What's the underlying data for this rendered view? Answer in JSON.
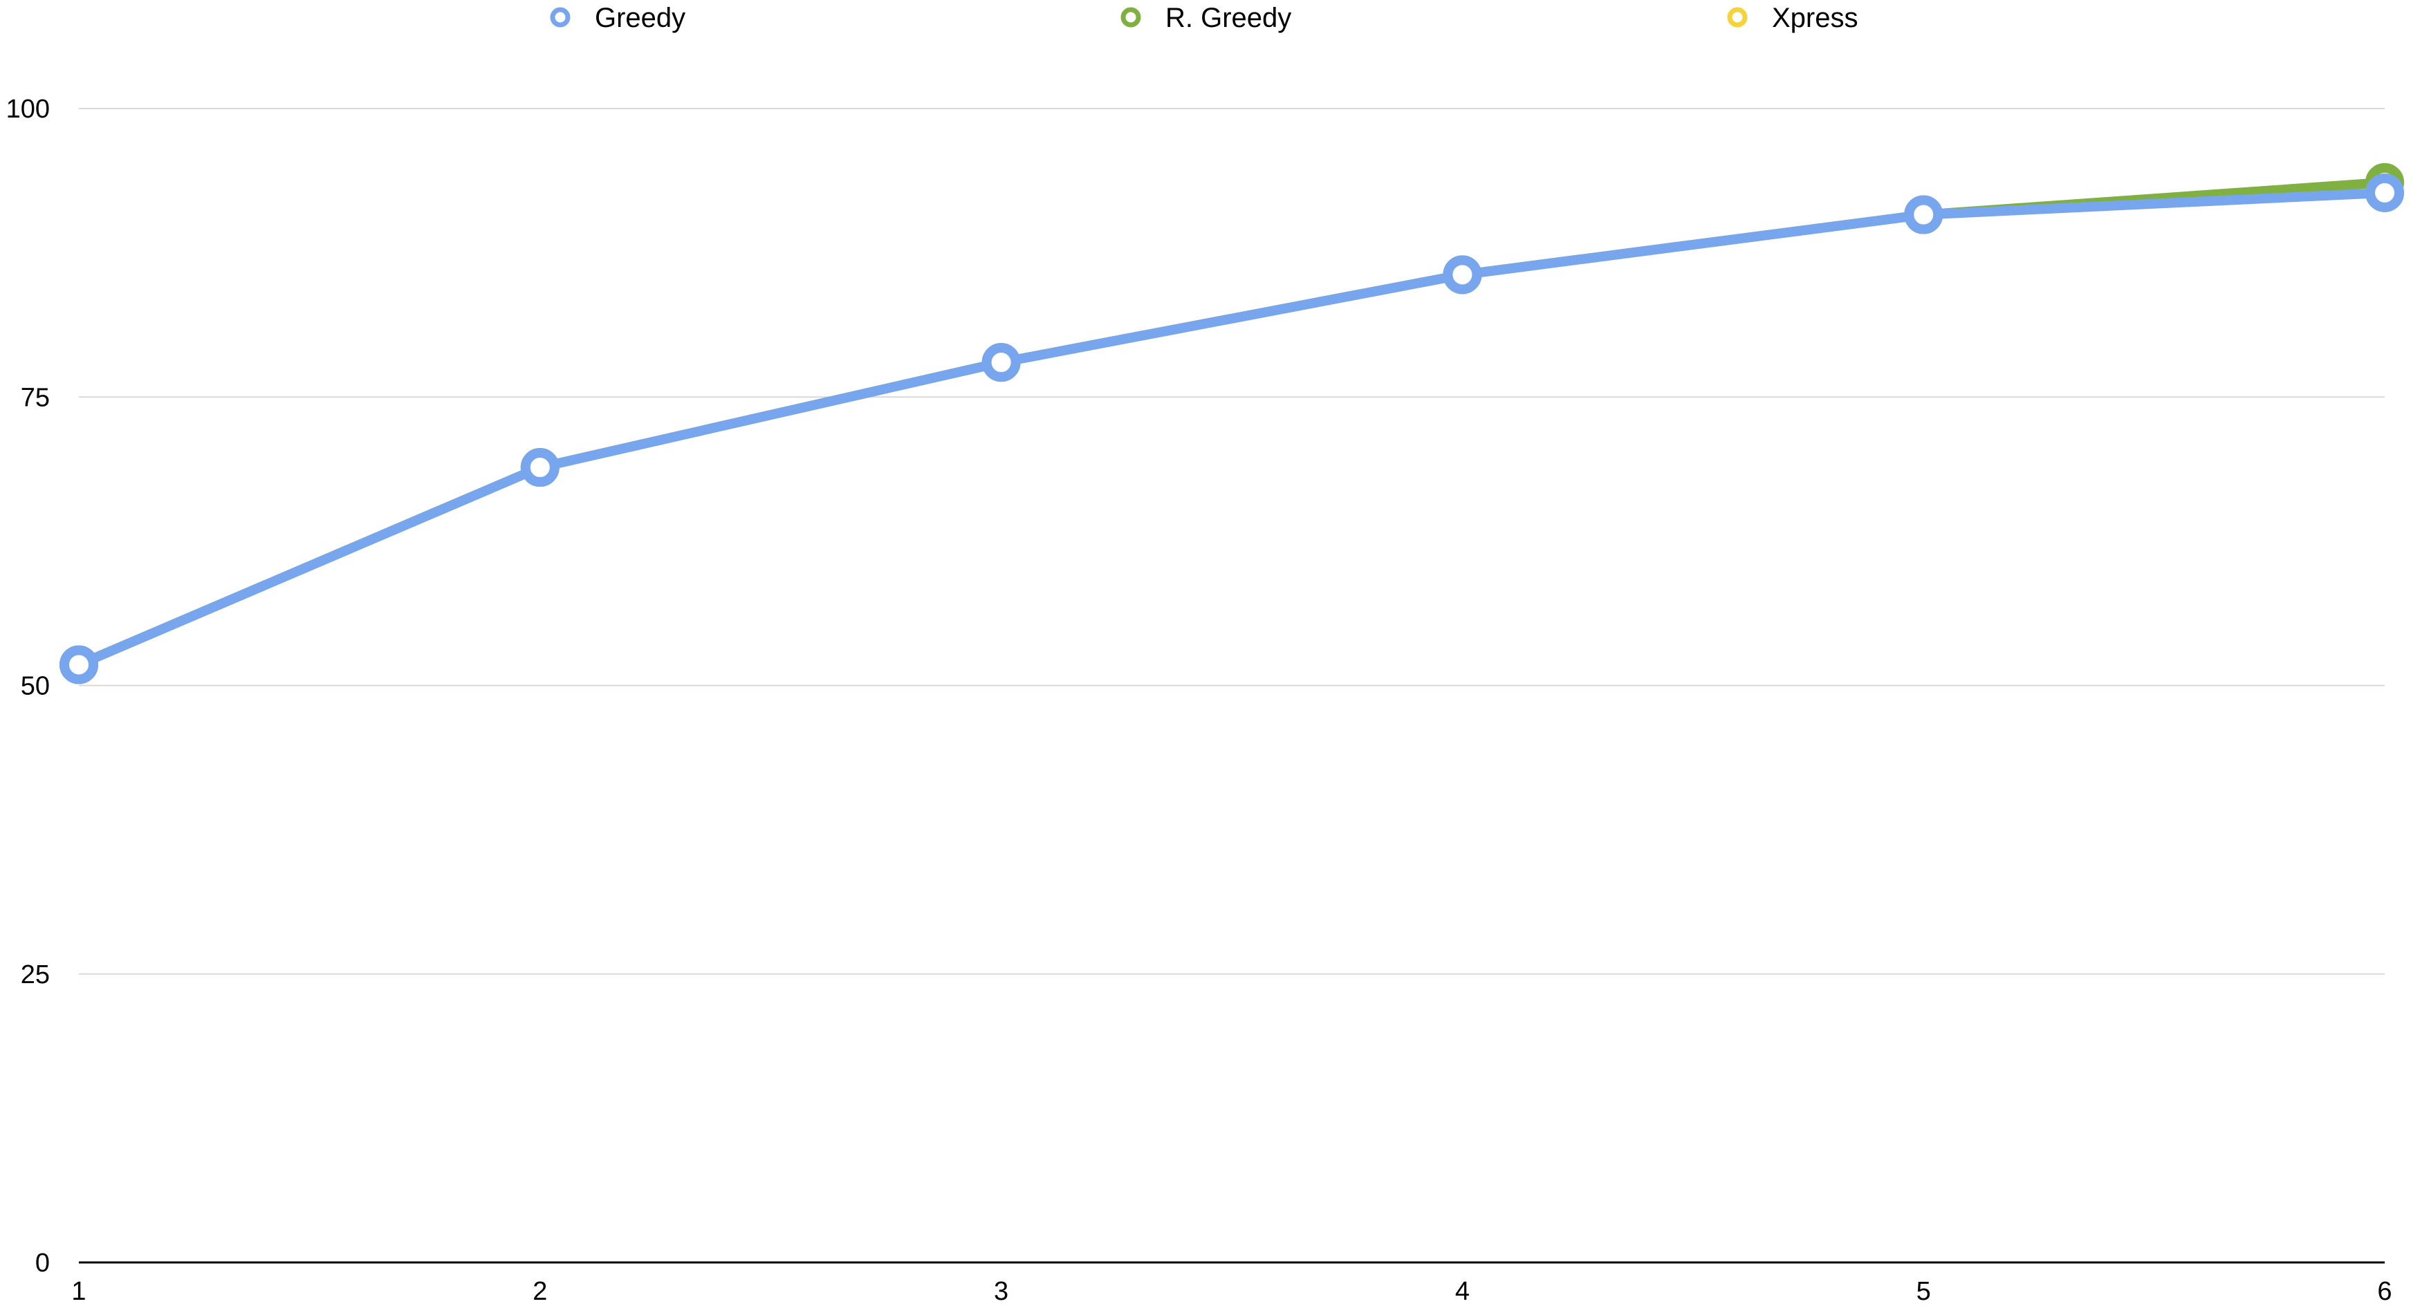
{
  "chart_data": {
    "type": "line",
    "categories": [
      "1",
      "2",
      "3",
      "4",
      "5",
      "6"
    ],
    "x": [
      1,
      2,
      3,
      4,
      5,
      6
    ],
    "series": [
      {
        "name": "Greedy",
        "color": "#78A6EE",
        "values": [
          51.8,
          68.9,
          78.0,
          85.6,
          90.8,
          92.7
        ]
      },
      {
        "name": "R. Greedy",
        "color": "#7FB041",
        "values": [
          51.8,
          68.9,
          78.0,
          85.6,
          90.8,
          93.6
        ]
      },
      {
        "name": "Xpress",
        "color": "#F4D33B",
        "values": [
          51.8,
          68.9,
          78.0,
          85.6,
          90.8,
          92.7
        ]
      }
    ],
    "y_ticks": [
      "0",
      "25",
      "50",
      "75",
      "100"
    ],
    "x_ticks": [
      "1",
      "2",
      "3",
      "4",
      "5",
      "6"
    ],
    "ylim": [
      0,
      100
    ],
    "xlim": [
      1,
      6
    ],
    "grid": true,
    "legend_position": "top"
  },
  "colors": {
    "gridline": "#D9D9D9",
    "axis": "#000000",
    "marker_fill": "#FFFFFF"
  }
}
